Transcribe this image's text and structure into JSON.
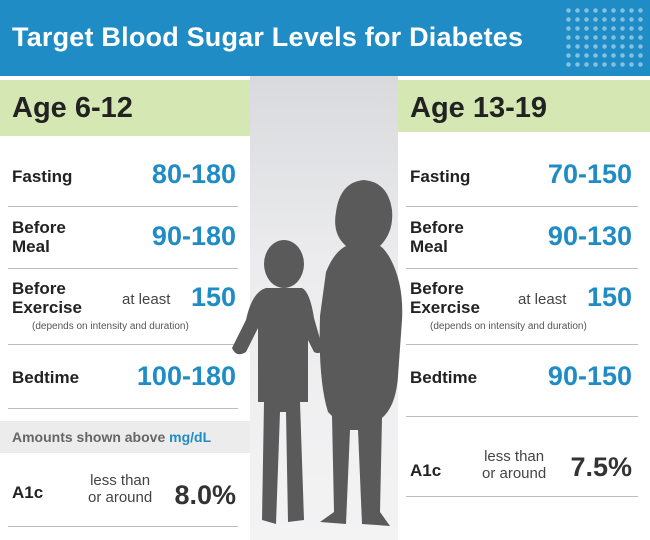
{
  "title": "Target Blood Sugar Levels for Diabetes",
  "colors": {
    "header": "#1f8cc6",
    "age_bar": "#d5e8b4",
    "value_text": "#1f8cc6",
    "silhouette": "#5a5a5a"
  },
  "left": {
    "age_label": "Age 6-12",
    "rows": [
      {
        "label": "Fasting",
        "value": "80-180"
      },
      {
        "label": "Before\nMeal",
        "value": "90-180"
      },
      {
        "label": "Before\nExercise",
        "prefix": "at least",
        "value": "150",
        "note": "(depends on intensity and duration)"
      },
      {
        "label": "Bedtime",
        "value": "100-180"
      }
    ],
    "amounts_text": "Amounts shown above",
    "amounts_unit": "mg/dL",
    "a1c": {
      "label": "A1c",
      "prefix": "less than\nor around",
      "value": "8.0%"
    }
  },
  "right": {
    "age_label": "Age 13-19",
    "rows": [
      {
        "label": "Fasting",
        "value": "70-150"
      },
      {
        "label": "Before\nMeal",
        "value": "90-130"
      },
      {
        "label": "Before\nExercise",
        "prefix": "at least",
        "value": "150",
        "note": "(depends on intensity and duration)"
      },
      {
        "label": "Bedtime",
        "value": "90-150"
      }
    ],
    "a1c": {
      "label": "A1c",
      "prefix": "less than\nor around",
      "value": "7.5%"
    }
  }
}
